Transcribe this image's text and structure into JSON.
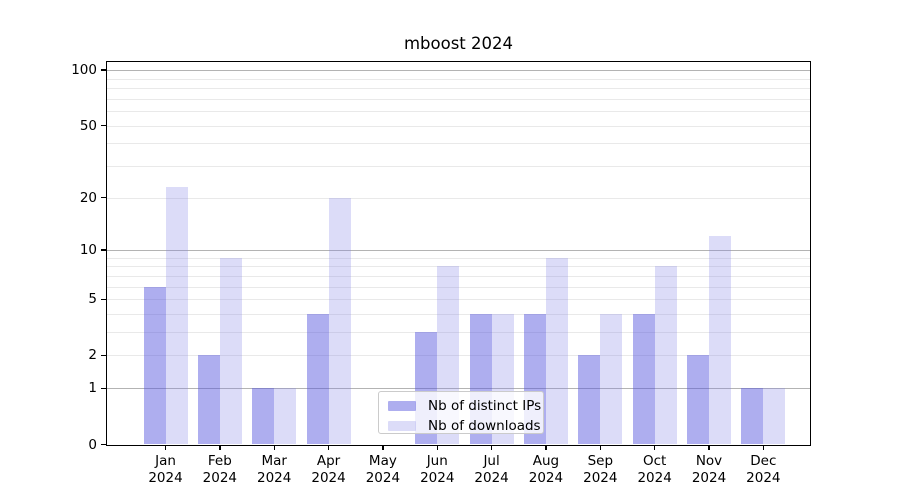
{
  "title": "mboost 2024",
  "legend": {
    "items": [
      {
        "label": "Nb of distinct IPs",
        "key": "ips"
      },
      {
        "label": "Nb of downloads",
        "key": "downloads"
      }
    ]
  },
  "y_axis": {
    "scale": "log10(1+value)",
    "tick_values": [
      0,
      1,
      2,
      5,
      10,
      20,
      50,
      100
    ],
    "tick_labels": [
      "0",
      "1",
      "2",
      "5",
      "10",
      "20",
      "50",
      "100"
    ],
    "major_grid_values": [
      1,
      10,
      100
    ],
    "minor_grid_values": [
      2,
      3,
      4,
      5,
      6,
      7,
      8,
      9,
      20,
      30,
      40,
      50,
      60,
      70,
      80,
      90
    ]
  },
  "x_axis": {
    "months": [
      "Jan",
      "Feb",
      "Mar",
      "Apr",
      "May",
      "Jun",
      "Jul",
      "Aug",
      "Sep",
      "Oct",
      "Nov",
      "Dec"
    ],
    "year": "2024"
  },
  "colors": {
    "bar_ips": "rgba(82,82,222,0.47)",
    "bar_downloads": "rgba(130,130,230,0.28)",
    "grid_major": "#b3b3b3",
    "grid_minor": "#e9e9e9",
    "axis": "#000000",
    "legend_border": "#cbcbcb"
  },
  "chart_data": {
    "type": "bar",
    "title": "mboost 2024",
    "categories": [
      "Jan 2024",
      "Feb 2024",
      "Mar 2024",
      "Apr 2024",
      "May 2024",
      "Jun 2024",
      "Jul 2024",
      "Aug 2024",
      "Sep 2024",
      "Oct 2024",
      "Nov 2024",
      "Dec 2024"
    ],
    "series": [
      {
        "name": "Nb of distinct IPs",
        "values": [
          6,
          2,
          1,
          4,
          0,
          3,
          4,
          4,
          2,
          4,
          2,
          1
        ]
      },
      {
        "name": "Nb of downloads",
        "values": [
          23,
          9,
          1,
          20,
          0,
          8,
          4,
          9,
          4,
          8,
          12,
          1
        ]
      }
    ],
    "xlabel": "",
    "ylabel": "",
    "yscale": "log1p",
    "ylim": [
      0,
      110
    ],
    "y_ticks": [
      0,
      1,
      2,
      5,
      10,
      20,
      50,
      100
    ],
    "grid": true,
    "legend_position": "lower center"
  }
}
